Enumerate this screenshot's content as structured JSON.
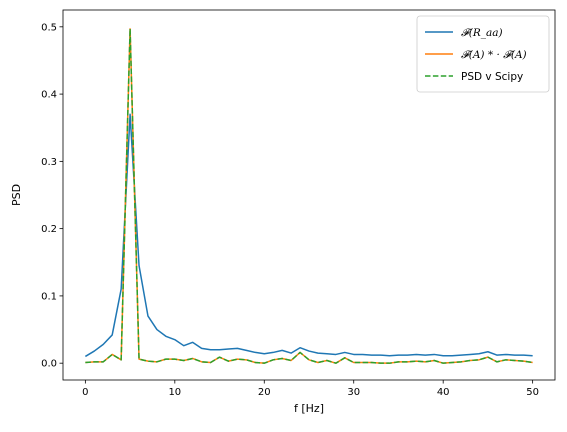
{
  "chart_data": {
    "type": "line",
    "xlabel": "f [Hz]",
    "ylabel": "PSD",
    "xlim": [
      -2.5,
      52.5
    ],
    "ylim": [
      -0.025,
      0.525
    ],
    "xticks": [
      0,
      10,
      20,
      30,
      40,
      50
    ],
    "yticks": [
      0.0,
      0.1,
      0.2,
      0.3,
      0.4,
      0.5
    ],
    "xtick_labels": [
      "0",
      "10",
      "20",
      "30",
      "40",
      "50"
    ],
    "ytick_labels": [
      "0.0",
      "0.1",
      "0.2",
      "0.3",
      "0.4",
      "0.5"
    ],
    "grid": false,
    "legend_position": "top-right",
    "x": [
      0,
      1,
      2,
      3,
      4,
      5,
      6,
      7,
      8,
      9,
      10,
      11,
      12,
      13,
      14,
      15,
      16,
      17,
      18,
      19,
      20,
      21,
      22,
      23,
      24,
      25,
      26,
      27,
      28,
      29,
      30,
      31,
      32,
      33,
      34,
      35,
      36,
      37,
      38,
      39,
      40,
      41,
      42,
      43,
      44,
      45,
      46,
      47,
      48,
      49,
      50
    ],
    "series": [
      {
        "name": "𝓕(R_aa)",
        "color": "#1f77b4",
        "style": "solid",
        "values": [
          0.01,
          0.018,
          0.028,
          0.042,
          0.11,
          0.37,
          0.145,
          0.07,
          0.05,
          0.04,
          0.035,
          0.026,
          0.031,
          0.022,
          0.02,
          0.02,
          0.021,
          0.022,
          0.019,
          0.016,
          0.014,
          0.016,
          0.019,
          0.015,
          0.023,
          0.018,
          0.015,
          0.014,
          0.013,
          0.016,
          0.013,
          0.013,
          0.012,
          0.012,
          0.011,
          0.012,
          0.012,
          0.013,
          0.012,
          0.013,
          0.011,
          0.011,
          0.012,
          0.013,
          0.014,
          0.017,
          0.012,
          0.013,
          0.012,
          0.012,
          0.011
        ]
      },
      {
        "name": "𝓕(A) * · 𝓕(A)",
        "color": "#ff7f0e",
        "style": "solid",
        "values": [
          0.001,
          0.002,
          0.002,
          0.013,
          0.005,
          0.497,
          0.006,
          0.003,
          0.002,
          0.006,
          0.006,
          0.004,
          0.007,
          0.002,
          0.001,
          0.009,
          0.003,
          0.006,
          0.005,
          0.001,
          0.0,
          0.005,
          0.007,
          0.004,
          0.016,
          0.005,
          0.001,
          0.004,
          0.0,
          0.008,
          0.001,
          0.001,
          0.001,
          0.0,
          0.0,
          0.002,
          0.002,
          0.003,
          0.002,
          0.004,
          0.0,
          0.001,
          0.002,
          0.004,
          0.005,
          0.009,
          0.002,
          0.005,
          0.004,
          0.003,
          0.001
        ]
      },
      {
        "name": "PSD v Scipy",
        "color": "#2ca02c",
        "style": "dashed",
        "values": [
          0.001,
          0.002,
          0.002,
          0.013,
          0.005,
          0.497,
          0.006,
          0.003,
          0.002,
          0.006,
          0.006,
          0.004,
          0.007,
          0.002,
          0.001,
          0.009,
          0.003,
          0.006,
          0.005,
          0.001,
          0.0,
          0.005,
          0.007,
          0.004,
          0.016,
          0.005,
          0.001,
          0.004,
          0.0,
          0.008,
          0.001,
          0.001,
          0.001,
          0.0,
          0.0,
          0.002,
          0.002,
          0.003,
          0.002,
          0.004,
          0.0,
          0.001,
          0.002,
          0.004,
          0.005,
          0.009,
          0.002,
          0.005,
          0.004,
          0.003,
          0.001
        ]
      }
    ]
  }
}
